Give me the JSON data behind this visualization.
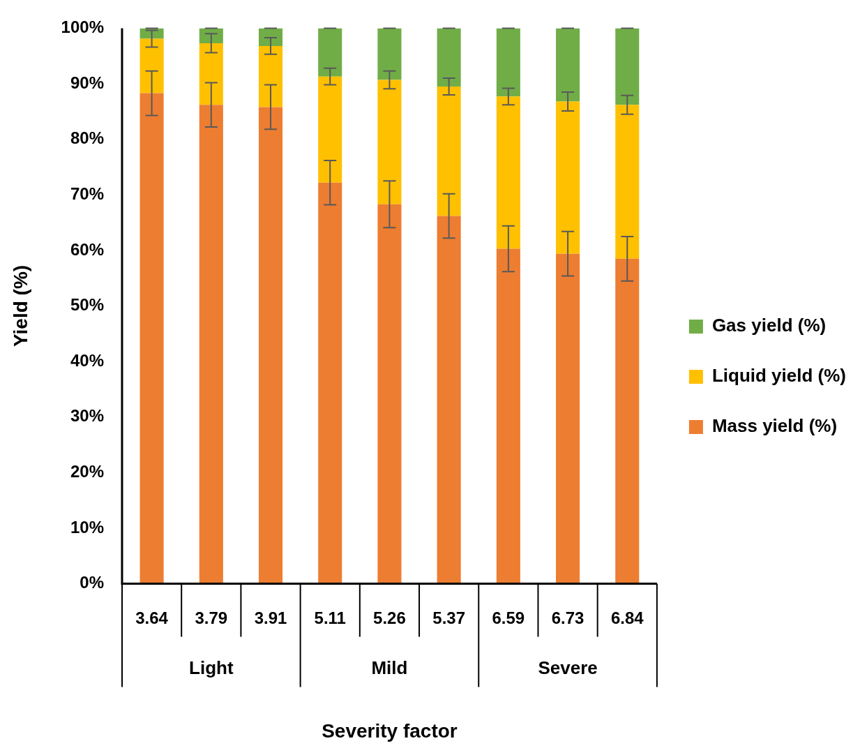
{
  "chart_data": {
    "type": "bar",
    "stacked": true,
    "xlabel": "Severity factor",
    "ylabel": "Yield (%)",
    "categories": [
      "3.64",
      "3.79",
      "3.91",
      "5.11",
      "5.26",
      "5.37",
      "6.59",
      "6.73",
      "6.84"
    ],
    "annotations": [
      "Light",
      "Mild",
      "Severe"
    ],
    "series": [
      {
        "name": "Mass yield (%)",
        "color": "#ed7d31",
        "values": [
          88.3,
          86.2,
          85.8,
          72.2,
          68.3,
          66.2,
          60.3,
          59.4,
          58.5
        ],
        "errors": [
          4.0,
          4.0,
          4.0,
          4.0,
          4.2,
          4.0,
          4.1,
          4.0,
          4.0
        ]
      },
      {
        "name": "Liquid yield (%)",
        "color": "#ffc000",
        "values": [
          9.8,
          11.1,
          11.0,
          19.1,
          22.4,
          23.3,
          27.4,
          27.4,
          27.7
        ],
        "errors": [
          1.5,
          1.7,
          1.5,
          1.5,
          1.6,
          1.5,
          1.5,
          1.7,
          1.7
        ]
      },
      {
        "name": "Gas yield (%)",
        "color": "#70ad47",
        "values": [
          1.9,
          2.7,
          3.2,
          8.7,
          9.3,
          10.5,
          12.3,
          13.2,
          13.8
        ],
        "errors": [
          0,
          0,
          0,
          0,
          0,
          0,
          0,
          0,
          0
        ]
      }
    ],
    "ylim": [
      0,
      100
    ],
    "yticks": [
      {
        "value": 0,
        "label": "0%"
      },
      {
        "value": 10,
        "label": "10%"
      },
      {
        "value": 20,
        "label": "20%"
      },
      {
        "value": 30,
        "label": "30%"
      },
      {
        "value": 40,
        "label": "40%"
      },
      {
        "value": 50,
        "label": "50%"
      },
      {
        "value": 60,
        "label": "60%"
      },
      {
        "value": 70,
        "label": "70%"
      },
      {
        "value": 80,
        "label": "80%"
      },
      {
        "value": 90,
        "label": "90%"
      },
      {
        "value": 100,
        "label": "100%"
      }
    ],
    "grid": false,
    "legend": "right"
  }
}
